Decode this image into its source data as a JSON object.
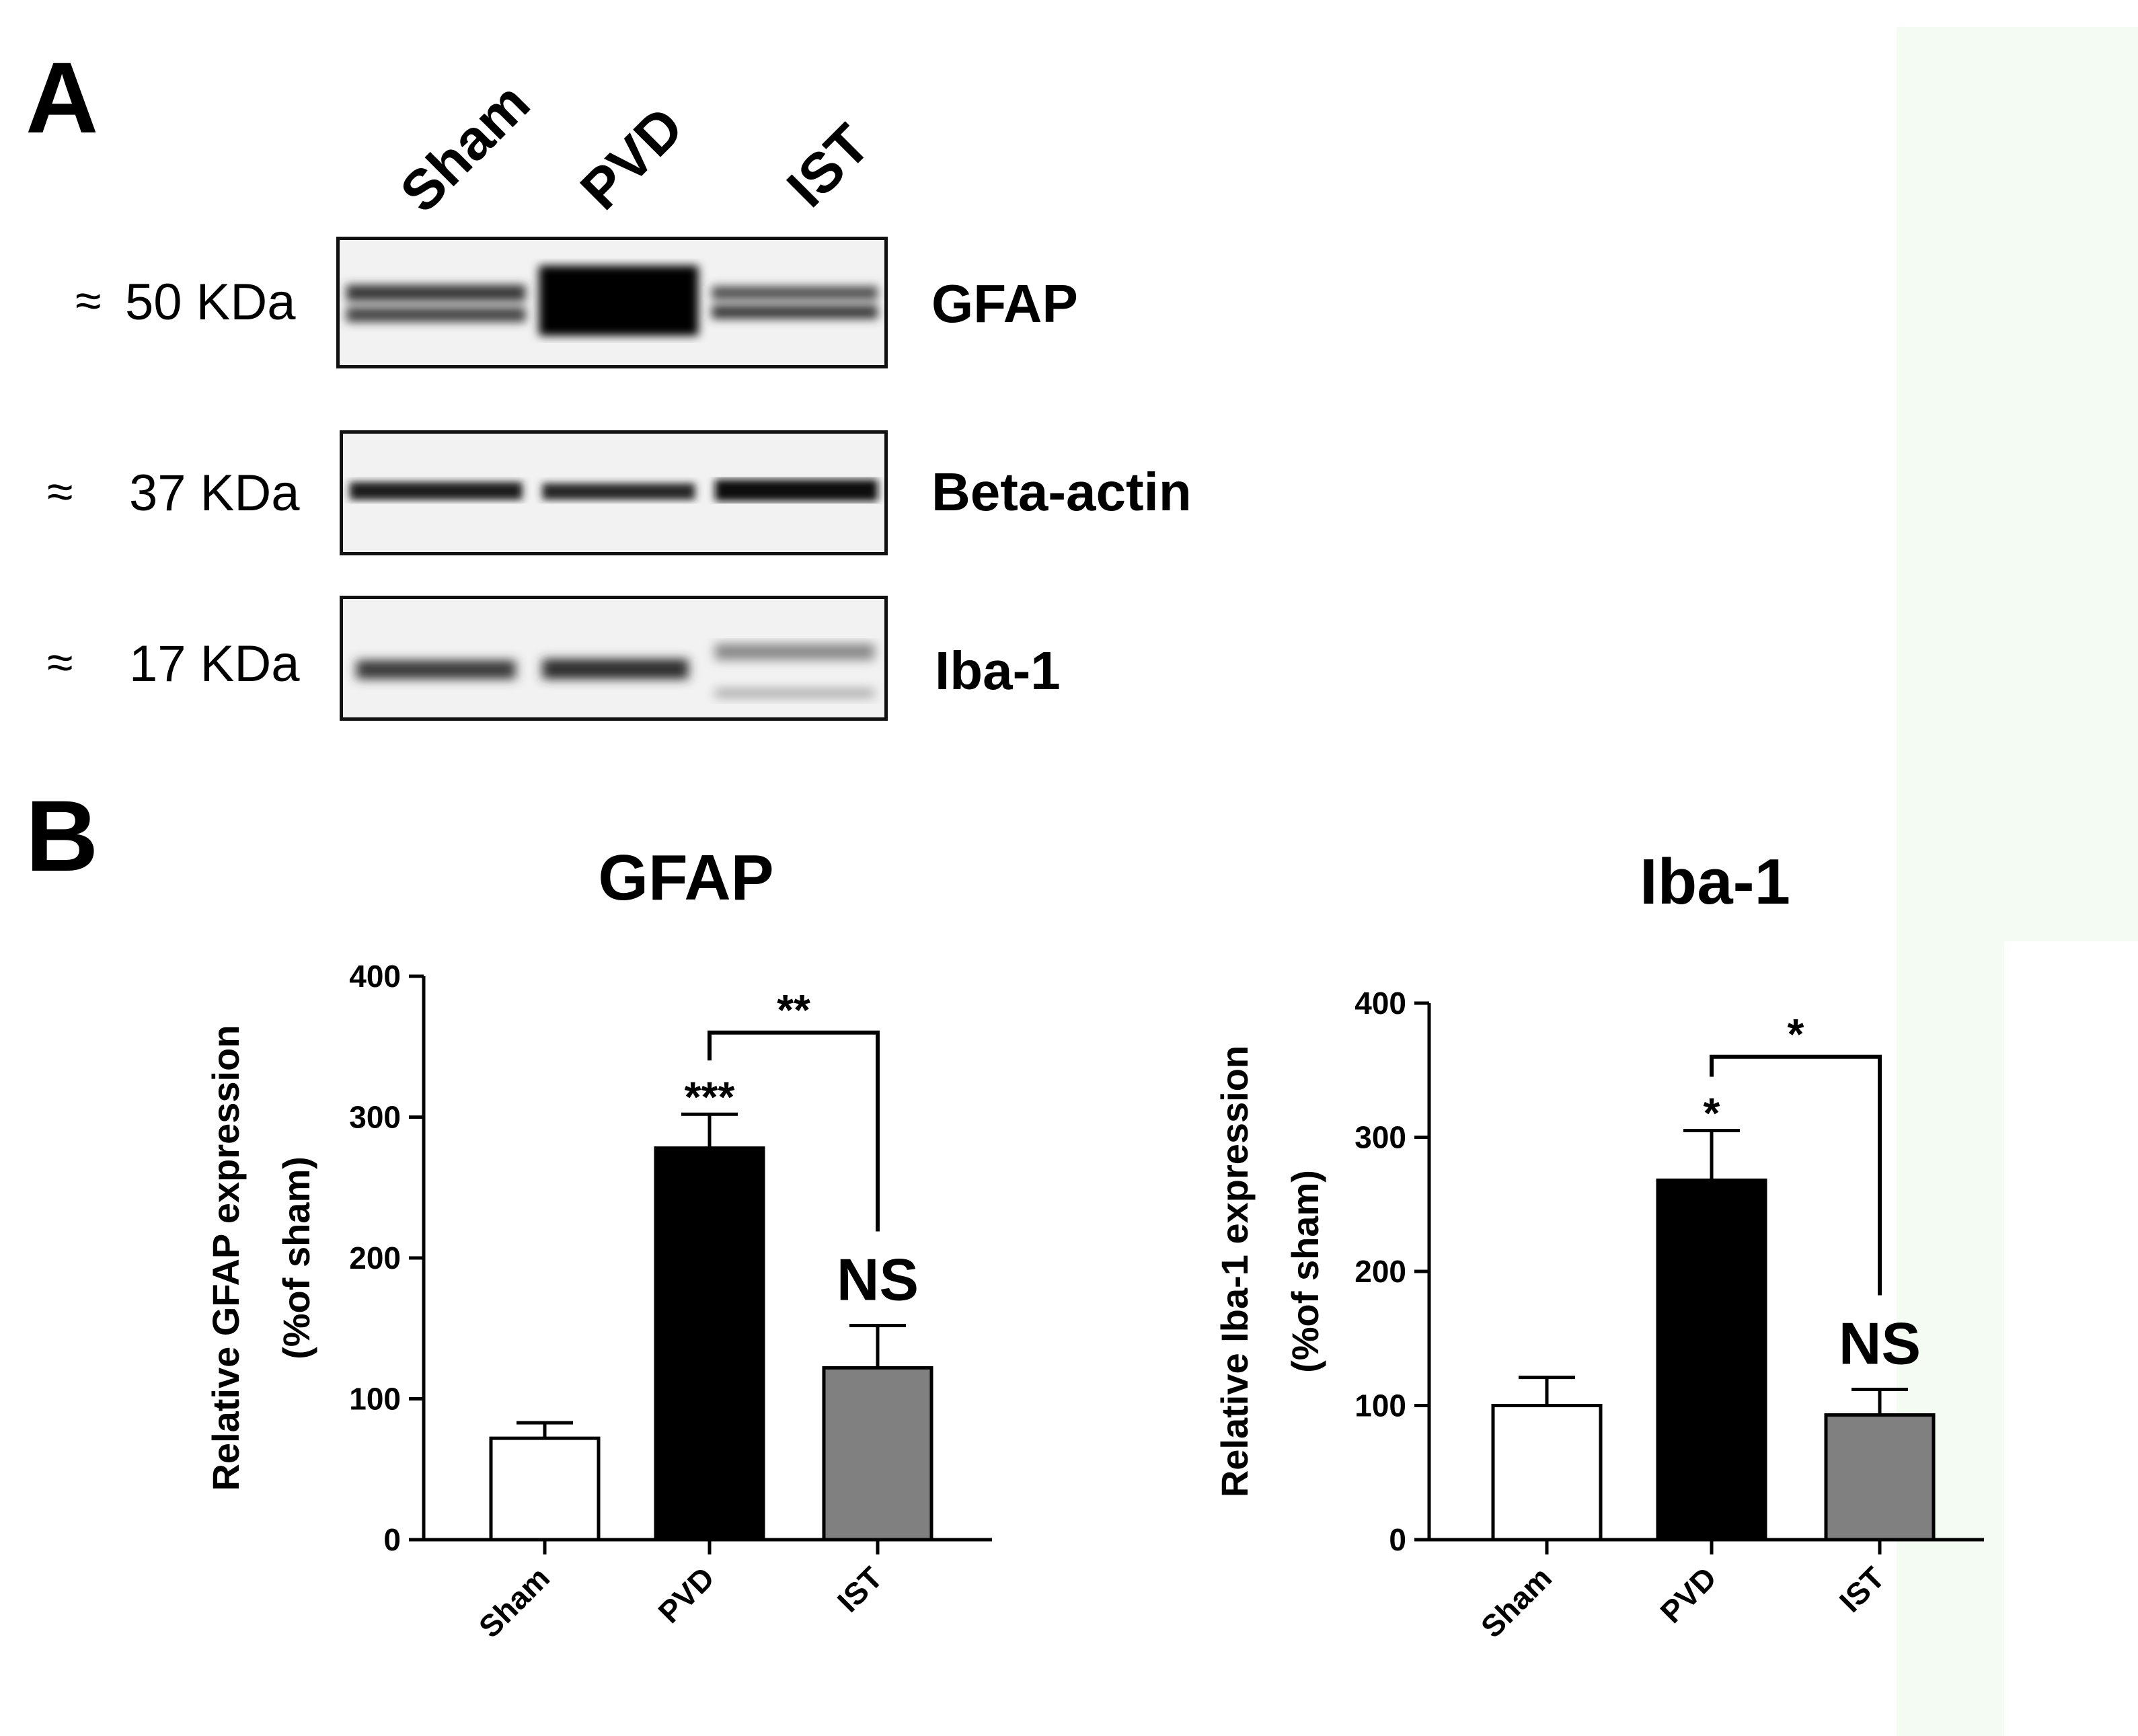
{
  "figure": {
    "panel_a_label": "A",
    "panel_b_label": "B",
    "lanes": [
      "Sham",
      "PVD",
      "IST"
    ],
    "blots": [
      {
        "marker": "≈",
        "size": "50 KDa",
        "protein": "GFAP"
      },
      {
        "marker": "≈",
        "size": "37 KDa",
        "protein": "Beta-actin"
      },
      {
        "marker": "≈",
        "size": "17 KDa",
        "protein": "Iba-1"
      }
    ],
    "colors": {
      "sham": "#ffffff",
      "pvd": "#000000",
      "ist": "#808080",
      "side_panel": "#f4fbf2"
    }
  },
  "chart_data": [
    {
      "type": "bar",
      "title": "GFAP",
      "ylabel": [
        "Relative GFAP expression",
        "(%of sham)"
      ],
      "xlabel": "",
      "categories": [
        "Sham",
        "PVD",
        "IST"
      ],
      "values": [
        72,
        278,
        122
      ],
      "errors": [
        11,
        24,
        30
      ],
      "colors": [
        "#ffffff",
        "#000000",
        "#808080"
      ],
      "ylim": [
        0,
        400
      ],
      "yticks": [
        0,
        100,
        200,
        300,
        400
      ],
      "annotations": [
        {
          "category": "PVD",
          "text": "***"
        },
        {
          "category": "IST",
          "text": "NS"
        }
      ],
      "bracket": {
        "from": "PVD",
        "to": "IST",
        "text": "**",
        "y": 360
      }
    },
    {
      "type": "bar",
      "title": "Iba-1",
      "ylabel": [
        "Relative Iba-1 expression",
        "(%of sham)"
      ],
      "xlabel": "",
      "categories": [
        "Sham",
        "PVD",
        "IST"
      ],
      "values": [
        100,
        268,
        93
      ],
      "errors": [
        21,
        37,
        19
      ],
      "colors": [
        "#ffffff",
        "#000000",
        "#808080"
      ],
      "ylim": [
        0,
        400
      ],
      "yticks": [
        0,
        100,
        200,
        300,
        400
      ],
      "annotations": [
        {
          "category": "PVD",
          "text": "*"
        },
        {
          "category": "IST",
          "text": "NS"
        }
      ],
      "bracket": {
        "from": "PVD",
        "to": "IST",
        "text": "*",
        "y": 360
      }
    }
  ]
}
